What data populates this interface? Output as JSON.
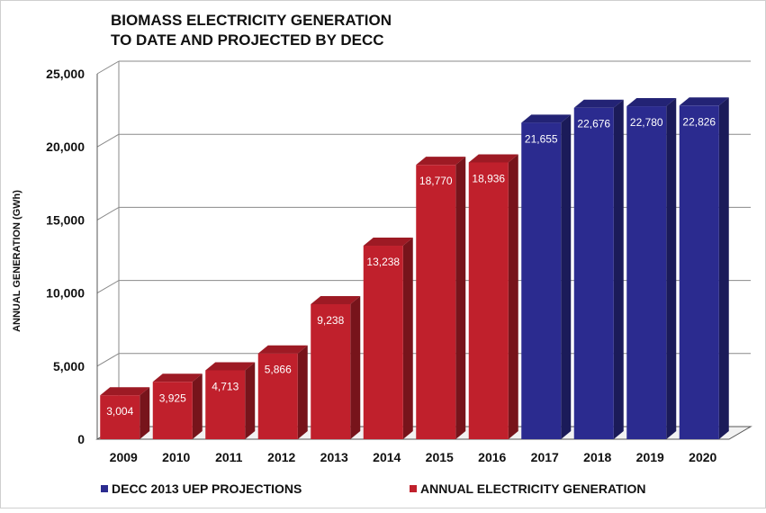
{
  "chart_data": {
    "type": "bar",
    "title_lines": [
      "BIOMASS ELECTRICITY GENERATION",
      "TO DATE AND PROJECTED BY DECC"
    ],
    "xlabel": "",
    "ylabel": "ANNUAL GENERATION (GWh)",
    "ylim": [
      0,
      25000
    ],
    "yticks": [
      0,
      5000,
      10000,
      15000,
      20000,
      25000
    ],
    "ytick_labels": [
      "0",
      "5,000",
      "10,000",
      "15,000",
      "20,000",
      "25,000"
    ],
    "grid": true,
    "legend_position": "bottom",
    "categories": [
      "2009",
      "2010",
      "2011",
      "2012",
      "2013",
      "2014",
      "2015",
      "2016",
      "2017",
      "2018",
      "2019",
      "2020"
    ],
    "values": [
      3004,
      3925,
      4713,
      5866,
      9238,
      13238,
      18770,
      18936,
      21655,
      22676,
      22780,
      22826
    ],
    "value_labels": [
      "3,004",
      "3,925",
      "4,713",
      "5,866",
      "9,238",
      "13,238",
      "18,770",
      "18,936",
      "21,655",
      "22,676",
      "22,780",
      "22,826"
    ],
    "series_of_point": [
      1,
      1,
      1,
      1,
      1,
      1,
      1,
      1,
      0,
      0,
      0,
      0
    ],
    "series": [
      {
        "name": "DECC 2013 UEP PROJECTIONS",
        "color": "#2b2b8f"
      },
      {
        "name": "ANNUAL ELECTRICITY GENERATION",
        "color": "#c0202c"
      }
    ]
  }
}
